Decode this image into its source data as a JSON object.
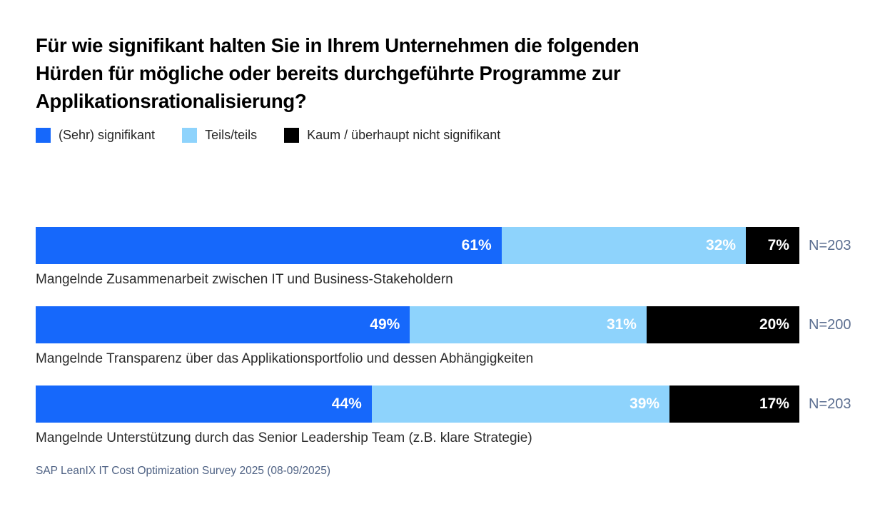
{
  "title": "Für wie signifikant halten Sie in Ihrem Unternehmen die folgenden\nHürden für mögliche oder bereits durchgeführte Programme zur\nApplikationsrationalisierung?",
  "footer": {
    "source": "SAP LeanIX IT Cost Optimization Survey 2025 (08-09/2025)"
  },
  "chart_data": {
    "type": "bar",
    "orientation": "horizontal",
    "stacked": true,
    "unit": "%",
    "xlim": [
      0,
      100
    ],
    "grid": false,
    "legend_position": "top",
    "value_labels_position": "inside-right",
    "value_label_color": "#ffffff",
    "categories": [
      "Mangelnde Zusammenarbeit zwischen IT und Business-Stakeholdern",
      "Mangelnde Transparenz über das Applikationsportfolio und dessen Abhängigkeiten",
      "Mangelnde Unterstützung durch das Senior Leadership Team (z.B. klare Strategie)"
    ],
    "series": [
      {
        "name": "(Sehr) signifikant",
        "color": "#1668fb",
        "values": [
          61,
          49,
          44
        ]
      },
      {
        "name": "Teils/teils",
        "color": "#8ed3fc",
        "values": [
          32,
          31,
          39
        ]
      },
      {
        "name": "Kaum / überhaupt nicht signifikant",
        "color": "#000000",
        "values": [
          7,
          20,
          17
        ]
      }
    ],
    "sample_sizes": [
      "N=203",
      "N=200",
      "N=203"
    ]
  },
  "colors": {
    "background": "#ffffff",
    "title_text": "#000000",
    "legend_text": "#262626",
    "category_text": "#2b2b2b",
    "sample_size_text": "#5b6e90",
    "footer_text": "#4f6284"
  }
}
